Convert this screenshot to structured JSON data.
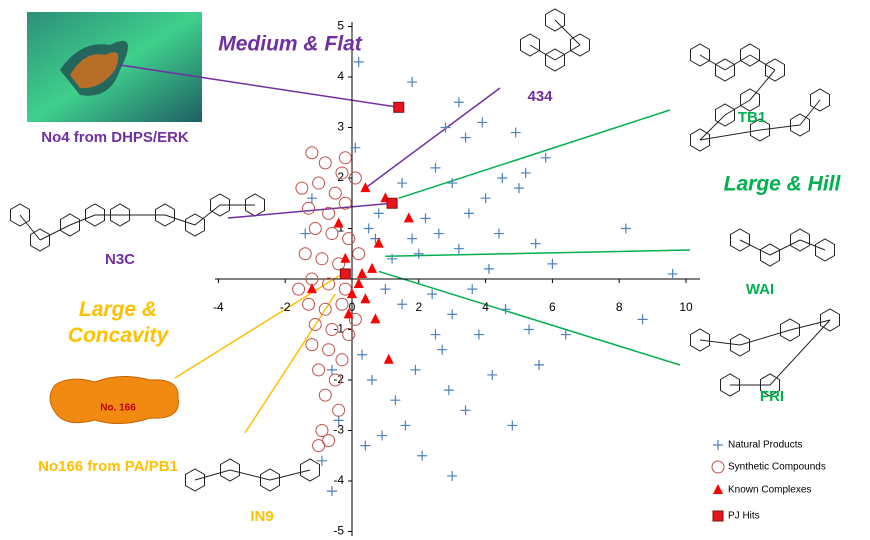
{
  "chart_data": {
    "type": "scatter",
    "xlim": [
      -4,
      10
    ],
    "ylim": [
      -5,
      5
    ],
    "xticks": [
      -4,
      -2,
      0,
      2,
      4,
      6,
      8,
      10
    ],
    "yticks": [
      -5,
      -4,
      -3,
      -2,
      -1,
      1,
      2,
      3,
      4,
      5
    ],
    "xtick_zero": 0,
    "series": [
      {
        "name": "Natural Products",
        "color": "#4f81bd",
        "marker": "plus",
        "x": [
          0.2,
          1.8,
          3.2,
          2.8,
          3.4,
          4.5,
          5.8,
          5.2,
          2.5,
          3.0,
          4.0,
          5.0,
          3.5,
          2.2,
          2.6,
          1.8,
          2.0,
          3.2,
          4.4,
          5.5,
          6.0,
          8.2,
          9.6,
          8.7,
          4.1,
          3.6,
          2.4,
          1.5,
          3.0,
          4.6,
          5.3,
          3.8,
          2.7,
          1.9,
          4.2,
          5.6,
          6.4,
          2.9,
          3.4,
          4.8,
          1.3,
          0.9,
          2.1,
          3.0,
          -0.4,
          -0.9,
          -0.6,
          0.4,
          1.6,
          2.5,
          1.2,
          1.0,
          0.7,
          0.8,
          1.5,
          0.5,
          -1.2,
          -1.4,
          0.3,
          0.6,
          4.9,
          3.9,
          0.1,
          -0.6
        ],
        "values": [
          4.3,
          3.9,
          3.5,
          3.0,
          2.8,
          2.0,
          2.4,
          2.1,
          2.2,
          1.9,
          1.6,
          1.8,
          1.3,
          1.2,
          0.9,
          0.8,
          0.5,
          0.6,
          0.9,
          0.7,
          0.3,
          1.0,
          0.1,
          -0.8,
          0.2,
          -0.2,
          -0.3,
          -0.5,
          -0.7,
          -0.6,
          -1.0,
          -1.1,
          -1.4,
          -1.8,
          -1.9,
          -1.7,
          -1.1,
          -2.2,
          -2.6,
          -2.9,
          -2.4,
          -3.1,
          -3.5,
          -3.9,
          -2.8,
          -3.6,
          -4.2,
          -3.3,
          -2.9,
          -1.1,
          0.4,
          -0.2,
          0.8,
          1.3,
          1.9,
          1.0,
          1.6,
          0.9,
          -1.5,
          -2.0,
          2.9,
          3.1,
          2.6,
          -1.8
        ]
      },
      {
        "name": "Synthetic Compounds",
        "color": "#c0504d",
        "marker": "circle",
        "x": [
          -1.2,
          -0.8,
          -0.3,
          -1.0,
          -0.5,
          -1.3,
          -0.7,
          -0.2,
          -1.1,
          -0.6,
          -0.1,
          -1.4,
          -0.9,
          -0.4,
          -1.2,
          -0.7,
          -0.2,
          -1.3,
          -0.8,
          -0.3,
          -1.1,
          -0.6,
          -0.1,
          -1.2,
          -0.7,
          -0.3,
          -1.0,
          -0.5,
          -0.8,
          -0.9,
          -0.7,
          -1.0,
          -0.4,
          0.1,
          0.2,
          0.1,
          -1.5,
          -1.6,
          -0.2
        ],
        "values": [
          2.5,
          2.3,
          2.1,
          1.9,
          1.7,
          1.4,
          1.3,
          1.5,
          1.0,
          0.9,
          0.8,
          0.5,
          0.4,
          0.3,
          0.0,
          -0.1,
          -0.2,
          -0.5,
          -0.6,
          -0.5,
          -0.9,
          -1.0,
          -1.1,
          -1.3,
          -1.4,
          -1.6,
          -1.8,
          -2.0,
          -2.3,
          -3.0,
          -3.2,
          -3.3,
          -2.6,
          2.0,
          0.5,
          -0.8,
          1.8,
          -0.2,
          2.4
        ]
      },
      {
        "name": "Known Complexes",
        "color": "#ff0000",
        "marker": "triangle",
        "x": [
          0.4,
          1.0,
          1.7,
          -0.4,
          0.8,
          -0.2,
          0.6,
          0.3,
          -1.2,
          0.0,
          0.4,
          0.7,
          -0.1,
          1.1,
          0.2
        ],
        "values": [
          1.8,
          1.6,
          1.2,
          1.1,
          0.7,
          0.4,
          0.2,
          0.1,
          -0.2,
          -0.3,
          -0.4,
          -0.8,
          -0.7,
          -1.6,
          -0.1
        ]
      },
      {
        "name": "PJ Hits",
        "color": "#e8141b",
        "marker": "square",
        "x": [
          1.4,
          1.2,
          -0.2
        ],
        "values": [
          3.4,
          1.5,
          0.1
        ]
      }
    ],
    "annotations": [
      "Medium & Flat",
      "434",
      "TB1",
      "Large & Hill",
      "WAI",
      "FRI",
      "N3C",
      "Large & Concavity",
      "No4 from DHPS/ERK",
      "No166 from PA/PB1",
      "IN9",
      "No. 166"
    ]
  }
}
